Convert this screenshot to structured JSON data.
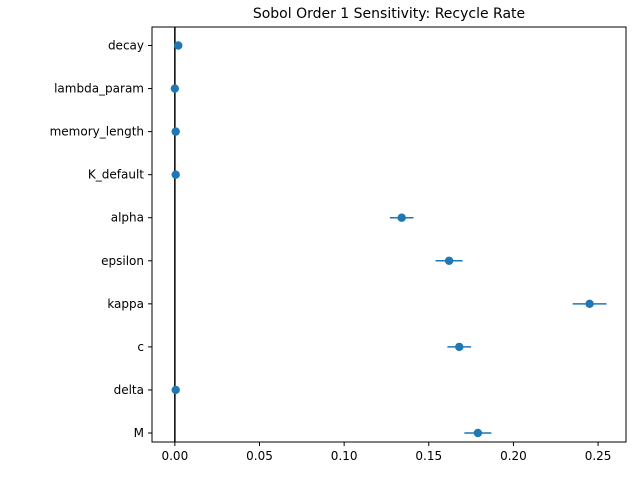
{
  "chart_data": {
    "type": "scatter",
    "title": "Sobol Order 1 Sensitivity: Recycle Rate",
    "xlabel": "",
    "ylabel": "",
    "xlim": [
      -0.0135,
      0.2665
    ],
    "x_ticks": [
      0.0,
      0.05,
      0.1,
      0.15,
      0.2,
      0.25
    ],
    "x_tick_labels": [
      "0.00",
      "0.05",
      "0.10",
      "0.15",
      "0.20",
      "0.25"
    ],
    "categories": [
      "decay",
      "lambda_param",
      "memory_length",
      "K_default",
      "alpha",
      "epsilon",
      "kappa",
      "c",
      "delta",
      "M"
    ],
    "values": [
      0.002,
      0.0,
      0.0005,
      0.0005,
      0.134,
      0.162,
      0.245,
      0.168,
      0.0005,
      0.179
    ],
    "conf": [
      0.0,
      0.0,
      0.0,
      0.0,
      0.007,
      0.008,
      0.01,
      0.007,
      0.0,
      0.008
    ],
    "reference_line_x": 0.0,
    "grid": false,
    "legend": "none",
    "colors": {
      "marker": "#1f77b4",
      "reference_line": "#000000",
      "axes": "#000000"
    }
  }
}
